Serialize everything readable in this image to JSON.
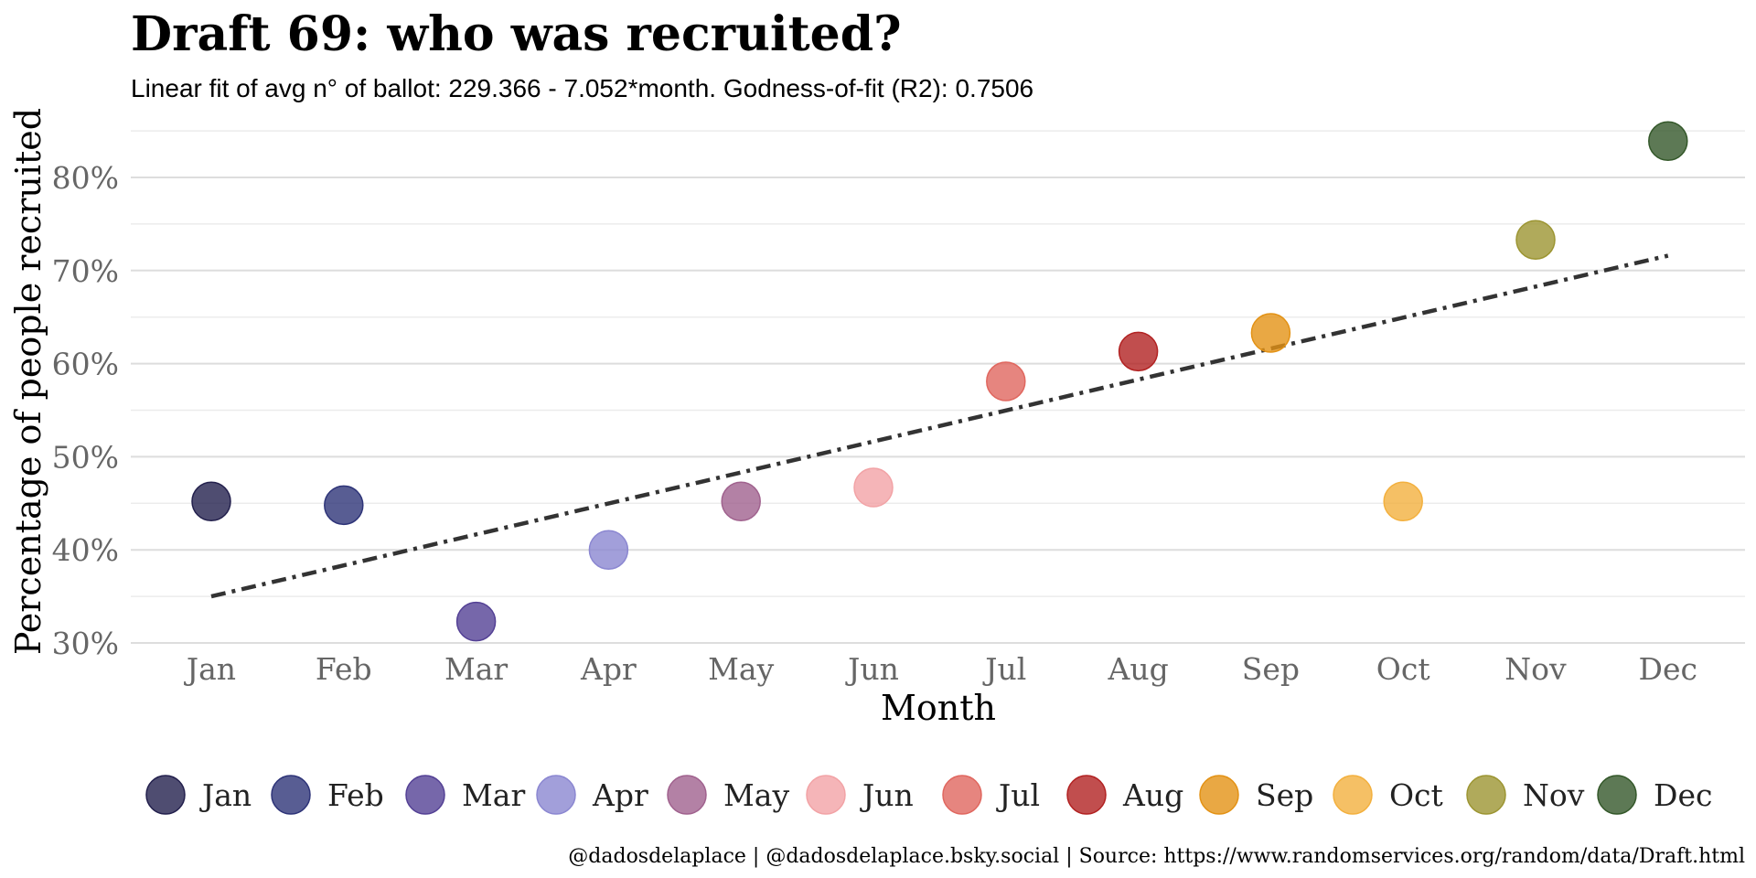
{
  "chart_data": {
    "type": "scatter",
    "title": "Draft 69: who was recruited?",
    "subtitle": "Linear fit of avg n° of ballot: 229.366 - 7.052*month. Godness-of-fit (R2): 0.7506",
    "xlabel": "Month",
    "ylabel": "Percentage of people recruited",
    "categories": [
      "Jan",
      "Feb",
      "Mar",
      "Apr",
      "May",
      "Jun",
      "Jul",
      "Aug",
      "Sep",
      "Oct",
      "Nov",
      "Dec"
    ],
    "values": [
      45.2,
      44.8,
      32.3,
      40.0,
      45.2,
      46.7,
      58.1,
      61.3,
      63.3,
      45.2,
      73.3,
      83.9
    ],
    "ylim": [
      29,
      85.5
    ],
    "y_ticks": [
      30,
      40,
      50,
      60,
      70,
      80
    ],
    "y_tick_labels": [
      "30%",
      "40%",
      "50%",
      "60%",
      "70%",
      "80%"
    ],
    "grid": true,
    "legend_position": "bottom",
    "fit_line": {
      "style": "dash-dot",
      "color": "#333333",
      "start": {
        "x": "Jan",
        "y": 35.0
      },
      "end": {
        "x": "Dec",
        "y": 71.6
      }
    },
    "colors": [
      "#23204d",
      "#2e3478",
      "#544195",
      "#8b87d1",
      "#a0628e",
      "#f2a3a6",
      "#e0675f",
      "#b22222",
      "#e39215",
      "#f3b03e",
      "#9c9532",
      "#34582a"
    ],
    "caption": "@dadosdelaplace | @dadosdelaplace.bsky.social | Source: https://www.randomservices.org/random/data/Draft.html"
  }
}
